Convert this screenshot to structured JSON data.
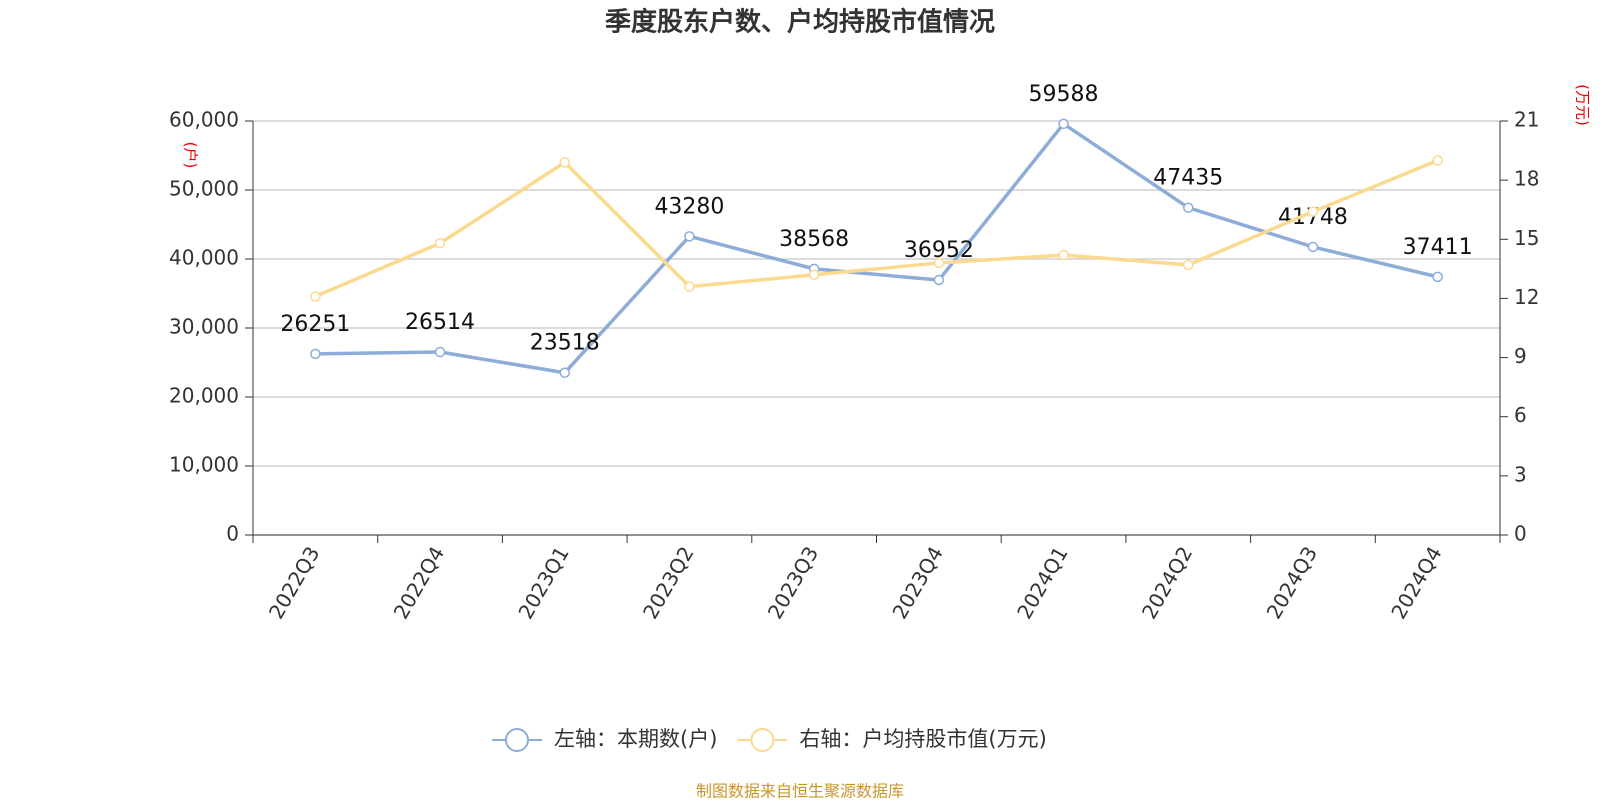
{
  "chart_data": {
    "type": "line",
    "title": "季度股东户数、户均持股市值情况",
    "y_unit": "(户)",
    "y2_unit": "(万元)",
    "categories": [
      "2022Q3",
      "2022Q4",
      "2023Q1",
      "2023Q2",
      "2023Q3",
      "2023Q4",
      "2024Q1",
      "2024Q2",
      "2024Q3",
      "2024Q4"
    ],
    "series": [
      {
        "name": "左轴：本期数(户)",
        "color": "#8eacd8",
        "values": [
          26251,
          26514,
          23518,
          43280,
          38568,
          36952,
          59588,
          47435,
          41748,
          37411
        ]
      },
      {
        "name": "右轴：户均持股市值(万元)",
        "color": "#fbd98f",
        "axis": "y2",
        "values": [
          12.1,
          14.8,
          18.9,
          12.6,
          13.2,
          13.8,
          14.2,
          13.7,
          16.4,
          19.0
        ]
      }
    ],
    "ylim": [
      0,
      60000
    ],
    "yticks": [
      0,
      {
        "value": 10000,
        "label": "10,000"
      },
      {
        "value": 20000,
        "label": "20,000"
      },
      {
        "value": 30000,
        "label": "30,000"
      },
      {
        "value": 40000,
        "label": "40,000"
      },
      {
        "value": 50000,
        "label": "50,000"
      },
      {
        "value": 60000,
        "label": "60,000"
      }
    ],
    "y2lim": [
      0,
      21
    ],
    "y2ticks": [
      0,
      3,
      6,
      9,
      12,
      15,
      18,
      21
    ],
    "grid": true,
    "legend": "bottom",
    "source": "制图数据来自恒生聚源数据库"
  }
}
